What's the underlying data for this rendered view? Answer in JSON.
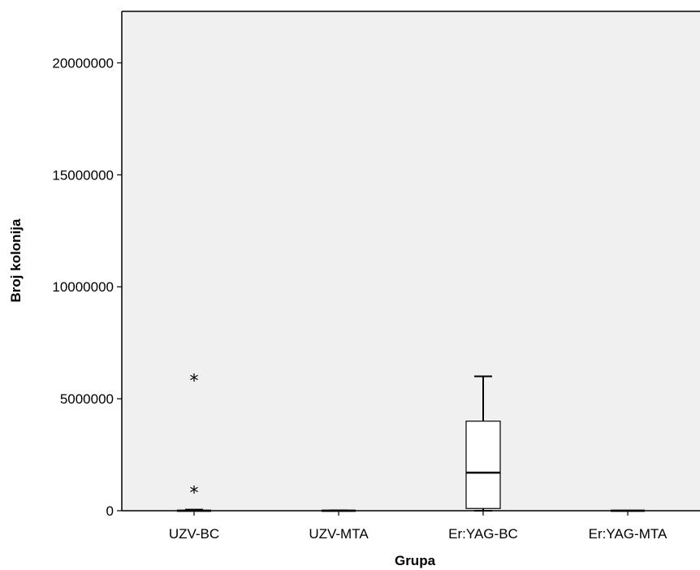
{
  "chart_data": {
    "type": "boxplot",
    "title": "",
    "xlabel": "Grupa",
    "ylabel": "Broj kolonija",
    "ylim": [
      0,
      22300000
    ],
    "yticks": [
      0,
      5000000,
      10000000,
      15000000,
      20000000
    ],
    "grid": false,
    "categories": [
      "UZV-BC",
      "UZV-MTA",
      "Er:YAG-BC",
      "Er:YAG-MTA"
    ],
    "boxes": [
      {
        "category": "UZV-BC",
        "min": 0,
        "q1": 0,
        "median": 0,
        "q3": 30000,
        "max": 50000,
        "outliers": [
          {
            "value": 6000000,
            "marker": "*"
          },
          {
            "value": 1000000,
            "marker": "*"
          }
        ]
      },
      {
        "category": "UZV-MTA",
        "min": 0,
        "q1": 0,
        "median": 0,
        "q3": 0,
        "max": 20000,
        "outliers": []
      },
      {
        "category": "Er:YAG-BC",
        "min": 0,
        "q1": 100000,
        "median": 1700000,
        "q3": 4000000,
        "max": 6000000,
        "outliers": []
      },
      {
        "category": "Er:YAG-MTA",
        "min": 0,
        "q1": 0,
        "median": 0,
        "q3": 0,
        "max": 0,
        "outliers": []
      }
    ],
    "colors": {
      "plot_background": "#f0f0f0",
      "box_fill": "#ffffff",
      "line": "#000000"
    }
  }
}
